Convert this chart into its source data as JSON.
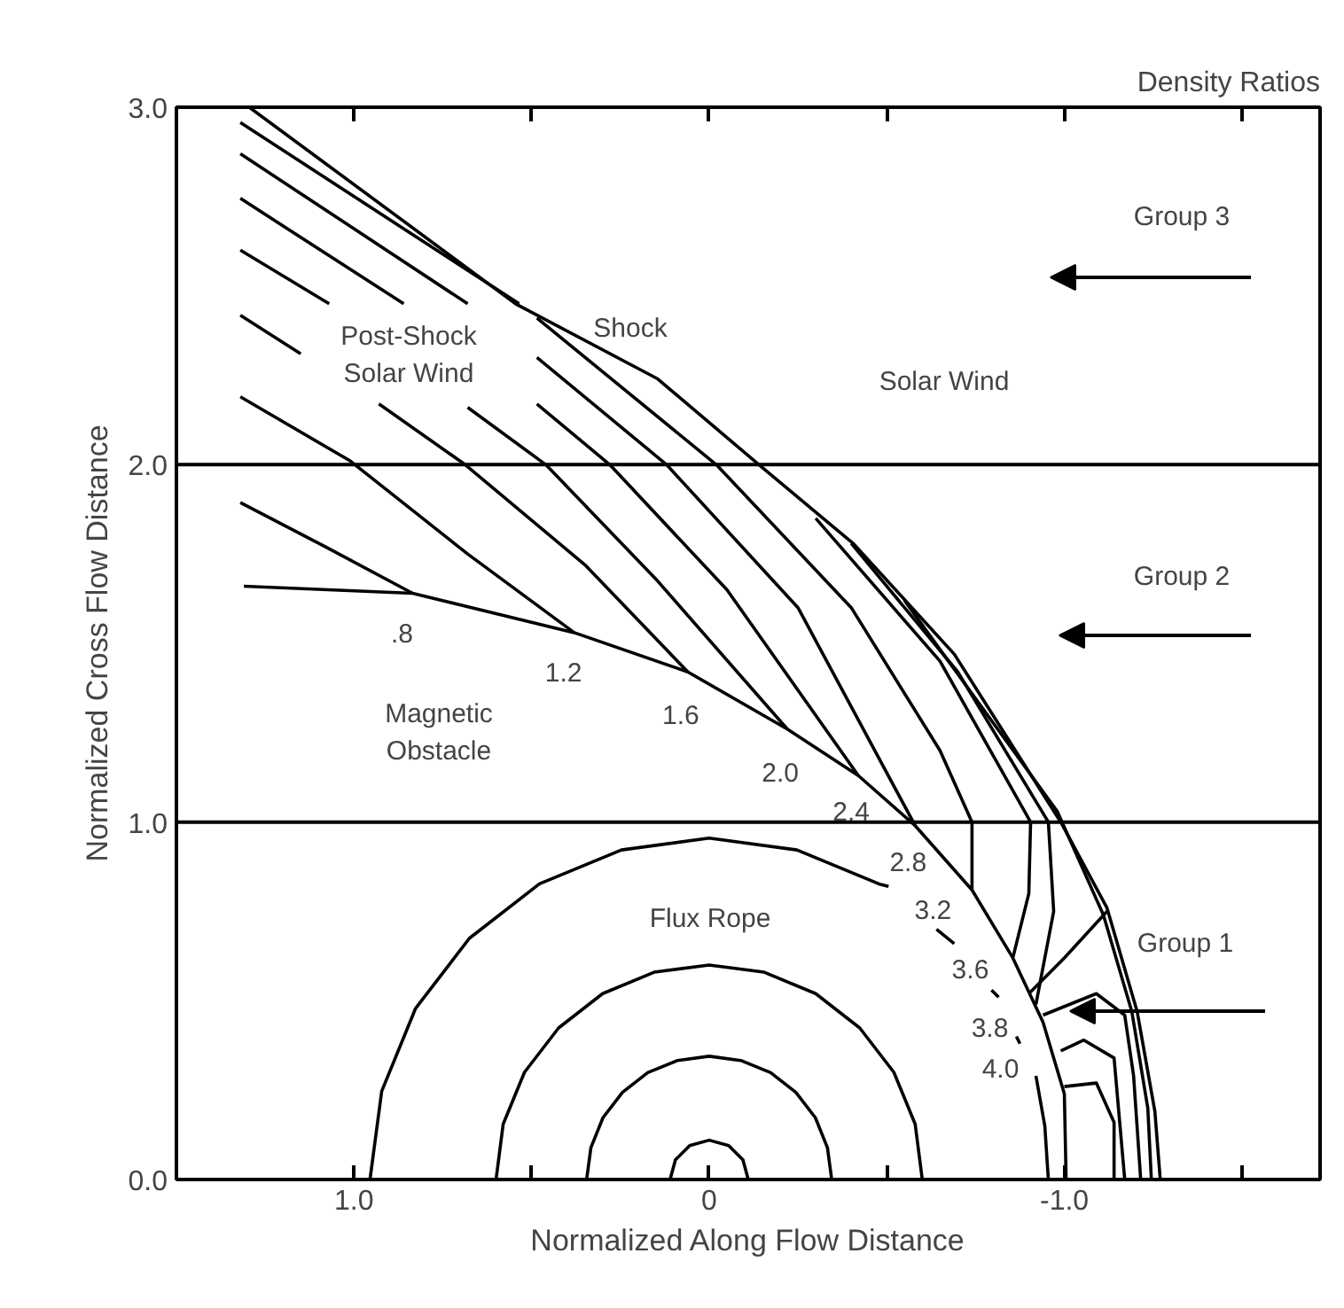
{
  "chart_data": {
    "type": "line",
    "title": "Density Ratios",
    "xlabel": "Normalized Along Flow Distance",
    "ylabel": "Normalized Cross Flow Distance",
    "xlim": [
      1.5,
      -1.72
    ],
    "ylim": [
      0,
      3
    ],
    "xticks": [
      {
        "value": 1.0,
        "label": "1.0"
      },
      {
        "value": 0.5,
        "label": null
      },
      {
        "value": 0,
        "label": "0"
      },
      {
        "value": -0.5,
        "label": null
      },
      {
        "value": -1.0,
        "label": "-1.0"
      },
      {
        "value": -1.5,
        "label": null
      }
    ],
    "yticks": [
      {
        "value": 0,
        "label": "0.0"
      },
      {
        "value": 1,
        "label": "1.0"
      },
      {
        "value": 2,
        "label": "2.0"
      },
      {
        "value": 3,
        "label": "3.0"
      }
    ],
    "grid": false,
    "marker": "none",
    "line_style": "solid",
    "ref_lines": [
      {
        "axis": "y",
        "value": 1,
        "label": null,
        "color": "#000000"
      },
      {
        "axis": "y",
        "value": 2,
        "label": null,
        "color": "#000000"
      }
    ],
    "series": [
      {
        "color": "#000000",
        "x": [
          1.295,
          0.545,
          0.145,
          -0.14,
          -0.405,
          -0.69,
          -0.99,
          -1.12,
          -1.205,
          -1.255,
          -1.27
        ],
        "values": [
          3.0,
          2.45,
          2.24,
          2.0,
          1.78,
          1.47,
          1.0,
          0.76,
          0.47,
          0.19,
          0
        ]
      },
      {
        "color": "#000000",
        "x": [
          1.31,
          0.835,
          0.38,
          0.06,
          -0.22,
          -0.42,
          -0.58,
          -0.74,
          -0.855,
          -0.94,
          -1.0,
          -1.005
        ],
        "values": [
          1.66,
          1.64,
          1.53,
          1.42,
          1.26,
          1.13,
          0.99,
          0.81,
          0.62,
          0.44,
          0.24,
          0
        ]
      },
      {
        "color": "#000000",
        "x": [
          1.32,
          1.08,
          0.835
        ],
        "values": [
          1.894,
          1.77,
          1.64
        ]
      },
      {
        "color": "#000000",
        "x": [
          1.32,
          1.01,
          0.68,
          0.38
        ],
        "values": [
          2.19,
          2.01,
          1.75,
          1.53
        ]
      },
      {
        "color": "#000000",
        "x": [
          1.32,
          1.15,
          null,
          0.93,
          0.687,
          0.35,
          0.06
        ],
        "values": [
          2.418,
          2.31,
          null,
          2.17,
          2.0,
          1.72,
          1.42
        ]
      },
      {
        "color": "#000000",
        "x": [
          1.32,
          1.07,
          null,
          0.68,
          0.46,
          0.15,
          -0.22
        ],
        "values": [
          2.6,
          2.45,
          null,
          2.16,
          2.0,
          1.68,
          1.26
        ]
      },
      {
        "color": "#000000",
        "x": [
          1.32,
          0.86,
          null,
          0.485,
          0.28,
          -0.05,
          -0.42
        ],
        "values": [
          2.745,
          2.45,
          null,
          2.17,
          2.0,
          1.65,
          1.13
        ]
      },
      {
        "color": "#000000",
        "x": [
          1.32,
          0.68,
          null,
          0.485,
          0.12,
          -0.25,
          -0.58
        ],
        "values": [
          2.87,
          2.45,
          null,
          2.3,
          2.0,
          1.6,
          0.99
        ]
      },
      {
        "color": "#000000",
        "x": [
          1.32,
          0.535,
          null,
          0.485,
          -0.02,
          -0.4,
          -0.65,
          -0.74,
          -0.74
        ],
        "values": [
          2.957,
          2.45,
          null,
          2.41,
          2.0,
          1.6,
          1.2,
          1.0,
          0.81
        ]
      },
      {
        "color": "#000000",
        "x": [
          -0.3,
          -0.65,
          -0.905,
          -0.9,
          -0.855
        ],
        "values": [
          1.85,
          1.45,
          1.0,
          0.8,
          0.62
        ]
      },
      {
        "color": "#000000",
        "x": [
          -0.4,
          -0.7,
          -0.955,
          -0.97,
          -0.92
        ],
        "values": [
          1.78,
          1.42,
          1.0,
          0.75,
          0.49
        ]
      },
      {
        "color": "#000000",
        "x": [
          -0.55,
          -0.98,
          -1.11,
          -1.19,
          -1.235,
          -1.245
        ],
        "values": [
          1.62,
          1.03,
          0.74,
          0.47,
          0.2,
          0
        ]
      },
      {
        "color": "#000000",
        "x": [
          -0.9,
          -1.0,
          -1.12
        ],
        "values": [
          0.52,
          0.62,
          0.75
        ]
      },
      {
        "color": "#000000",
        "x": [
          -0.94,
          -1.09,
          -1.17,
          -1.195,
          -1.215
        ],
        "values": [
          0.46,
          0.52,
          0.46,
          0.29,
          0
        ]
      },
      {
        "color": "#000000",
        "x": [
          -0.99,
          -1.055,
          -1.14,
          -1.17
        ],
        "values": [
          0.36,
          0.39,
          0.34,
          0
        ]
      },
      {
        "color": "#000000",
        "x": [
          -1.0,
          -1.09,
          -1.14,
          -1.14
        ],
        "values": [
          0.26,
          0.27,
          0.16,
          0
        ]
      },
      {
        "color": "#000000",
        "x": [
          0.955,
          0.922,
          0.827,
          0.675,
          0.478,
          0.247,
          0,
          -0.247,
          -0.478,
          -0.505,
          null,
          -0.64,
          -0.69,
          null,
          -0.795,
          -0.815,
          null,
          -0.865,
          -0.875,
          null,
          -0.92,
          -0.945,
          -0.955
        ],
        "values": [
          0,
          0.247,
          0.478,
          0.675,
          0.827,
          0.922,
          0.955,
          0.922,
          0.827,
          0.82,
          null,
          0.7,
          0.66,
          null,
          0.53,
          0.51,
          null,
          0.4,
          0.38,
          null,
          0.29,
          0.15,
          0
        ]
      },
      {
        "color": "#000000",
        "x": [
          0.6,
          0.58,
          0.52,
          0.424,
          0.3,
          0.155,
          0,
          -0.155,
          -0.3,
          -0.424,
          -0.52,
          -0.58,
          -0.6
        ],
        "values": [
          0,
          0.155,
          0.3,
          0.424,
          0.52,
          0.58,
          0.6,
          0.58,
          0.52,
          0.424,
          0.3,
          0.155,
          0
        ]
      },
      {
        "color": "#000000",
        "x": [
          0.345,
          0.333,
          0.299,
          0.244,
          0.173,
          0.089,
          0,
          -0.089,
          -0.173,
          -0.244,
          -0.299,
          -0.333,
          -0.345
        ],
        "values": [
          0,
          0.089,
          0.173,
          0.244,
          0.299,
          0.333,
          0.345,
          0.333,
          0.299,
          0.244,
          0.173,
          0.089,
          0
        ]
      },
      {
        "color": "#000000",
        "x": [
          0.11,
          0.095,
          0.055,
          0,
          -0.055,
          -0.095,
          -0.11
        ],
        "values": [
          0,
          0.055,
          0.095,
          0.11,
          0.095,
          0.055,
          0
        ]
      }
    ],
    "annotations": [
      {
        "text": ".8",
        "x": 0.835,
        "y": 1.64
      },
      {
        "text": "1.2",
        "x": 0.38,
        "y": 1.53
      },
      {
        "text": "1.6",
        "x": 0.06,
        "y": 1.42
      },
      {
        "text": "2.0",
        "x": -0.22,
        "y": 1.26
      },
      {
        "text": "2.4",
        "x": -0.42,
        "y": 1.13
      },
      {
        "text": "2.8",
        "x": -0.58,
        "y": 0.99
      },
      {
        "text": "3.2",
        "x": -0.74,
        "y": 0.81
      },
      {
        "text": "3.6",
        "x": -0.855,
        "y": 0.62
      },
      {
        "text": "3.8",
        "x": -0.92,
        "y": 0.49
      },
      {
        "text": "4.0",
        "x": -0.94,
        "y": 0.46
      },
      "Post-Shock\nSolar Wind",
      "Shock",
      "Solar Wind",
      "Magnetic\nObstacle",
      "Flux Rope",
      "Group 3",
      "Group 2",
      "Group 1"
    ]
  }
}
